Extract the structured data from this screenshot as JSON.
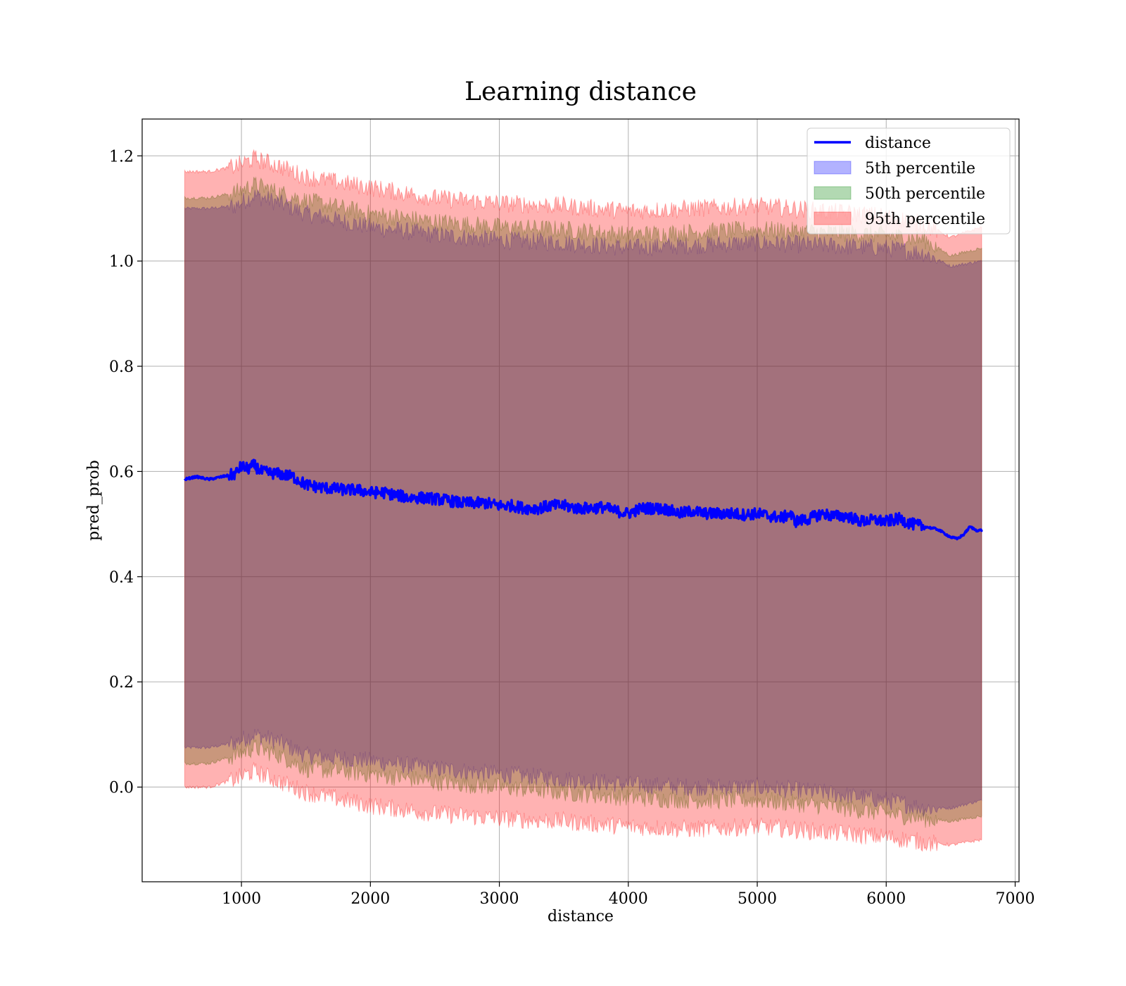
{
  "chart_data": {
    "type": "line",
    "title": "Learning distance",
    "xlabel": "distance",
    "ylabel": "pred_prob",
    "xlim": [
      230,
      7030
    ],
    "ylim": [
      -0.18,
      1.27
    ],
    "xticks": [
      1000,
      2000,
      3000,
      4000,
      5000,
      6000,
      7000
    ],
    "yticks": [
      0.0,
      0.2,
      0.4,
      0.6,
      0.8,
      1.0,
      1.2
    ],
    "xtick_labels": [
      "1000",
      "2000",
      "3000",
      "4000",
      "5000",
      "6000",
      "7000"
    ],
    "ytick_labels": [
      "0.0",
      "0.2",
      "0.4",
      "0.6",
      "0.8",
      "1.0",
      "1.2"
    ],
    "grid": true,
    "legend_position": "top-right",
    "legend": [
      "distance",
      "5th percentile",
      "50th percentile",
      "95th percentile"
    ],
    "series": [
      {
        "name": "distance",
        "kind": "line",
        "color": "#0000ff",
        "x": [
          560,
          650,
          750,
          850,
          950,
          1000,
          1050,
          1100,
          1150,
          1200,
          1300,
          1400,
          1500,
          1600,
          1700,
          1800,
          1900,
          2000,
          2100,
          2200,
          2300,
          2400,
          2500,
          2600,
          2700,
          2800,
          2900,
          3000,
          3100,
          3200,
          3300,
          3400,
          3500,
          3600,
          3700,
          3800,
          3900,
          4000,
          4100,
          4200,
          4300,
          4400,
          4500,
          4600,
          4700,
          4800,
          4900,
          5000,
          5100,
          5200,
          5250,
          5300,
          5400,
          5500,
          5600,
          5700,
          5800,
          5900,
          6000,
          6100,
          6200,
          6300,
          6400,
          6500,
          6550,
          6600,
          6650,
          6700,
          6740
        ],
        "values": [
          0.585,
          0.59,
          0.585,
          0.59,
          0.595,
          0.61,
          0.605,
          0.612,
          0.6,
          0.598,
          0.595,
          0.59,
          0.575,
          0.57,
          0.568,
          0.565,
          0.565,
          0.56,
          0.56,
          0.555,
          0.55,
          0.55,
          0.548,
          0.545,
          0.54,
          0.54,
          0.54,
          0.535,
          0.535,
          0.53,
          0.53,
          0.535,
          0.535,
          0.53,
          0.53,
          0.532,
          0.525,
          0.52,
          0.53,
          0.53,
          0.528,
          0.52,
          0.525,
          0.52,
          0.52,
          0.52,
          0.518,
          0.52,
          0.515,
          0.512,
          0.52,
          0.505,
          0.51,
          0.52,
          0.515,
          0.515,
          0.505,
          0.508,
          0.505,
          0.51,
          0.5,
          0.495,
          0.49,
          0.475,
          0.472,
          0.48,
          0.495,
          0.488,
          0.488
        ]
      },
      {
        "name": "5th percentile",
        "kind": "band",
        "color": "#0000ff",
        "x": [
          560,
          750,
          950,
          1100,
          1300,
          1500,
          2000,
          2500,
          3000,
          3500,
          4000,
          4500,
          5000,
          5500,
          6000,
          6300,
          6500,
          6740
        ],
        "upper": [
          1.1,
          1.1,
          1.105,
          1.125,
          1.11,
          1.09,
          1.065,
          1.05,
          1.04,
          1.035,
          1.025,
          1.03,
          1.035,
          1.03,
          1.025,
          1.015,
          0.99,
          1.0
        ],
        "lower": [
          0.075,
          0.075,
          0.085,
          0.1,
          0.085,
          0.06,
          0.05,
          0.035,
          0.025,
          0.015,
          0.005,
          0.0,
          0.0,
          -0.01,
          -0.025,
          -0.04,
          -0.04,
          -0.025
        ]
      },
      {
        "name": "50th percentile",
        "kind": "band",
        "color": "#008000",
        "x": [
          560,
          750,
          950,
          1100,
          1300,
          1500,
          2000,
          2500,
          3000,
          3500,
          4000,
          4500,
          5000,
          5500,
          6000,
          6300,
          6500,
          6740
        ],
        "upper": [
          1.12,
          1.12,
          1.13,
          1.145,
          1.13,
          1.115,
          1.09,
          1.075,
          1.065,
          1.06,
          1.05,
          1.055,
          1.06,
          1.055,
          1.05,
          1.04,
          1.01,
          1.025
        ],
        "lower": [
          0.045,
          0.045,
          0.06,
          0.075,
          0.06,
          0.035,
          0.025,
          0.01,
          0.0,
          -0.01,
          -0.02,
          -0.025,
          -0.025,
          -0.035,
          -0.05,
          -0.06,
          -0.065,
          -0.055
        ]
      },
      {
        "name": "95th percentile",
        "kind": "band",
        "color": "#ff0000",
        "x": [
          560,
          750,
          950,
          1100,
          1300,
          1500,
          2000,
          2500,
          3000,
          3500,
          4000,
          4500,
          5000,
          5500,
          6000,
          6300,
          6500,
          6740
        ],
        "upper": [
          1.17,
          1.17,
          1.18,
          1.195,
          1.18,
          1.16,
          1.14,
          1.12,
          1.11,
          1.105,
          1.095,
          1.1,
          1.105,
          1.095,
          1.085,
          1.07,
          1.045,
          1.065
        ],
        "lower": [
          0.0,
          0.0,
          0.015,
          0.03,
          0.01,
          -0.01,
          -0.035,
          -0.05,
          -0.06,
          -0.065,
          -0.075,
          -0.08,
          -0.075,
          -0.085,
          -0.095,
          -0.105,
          -0.11,
          -0.1
        ]
      }
    ]
  }
}
